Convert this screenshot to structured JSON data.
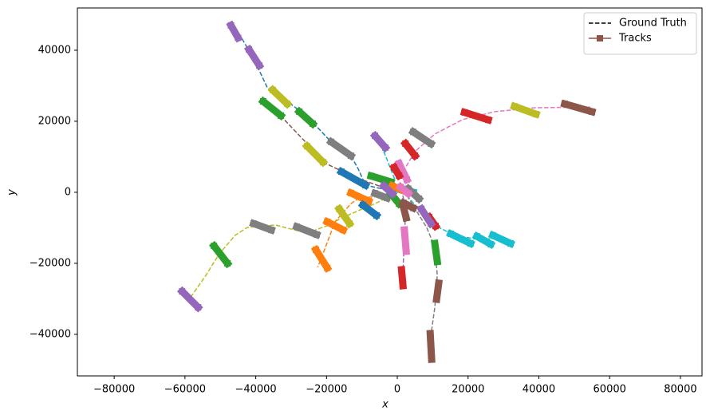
{
  "chart_data": {
    "type": "line",
    "xlabel": "x",
    "ylabel": "y",
    "xlim": [
      -90400,
      86100
    ],
    "ylim": [
      -51700,
      51900
    ],
    "xticks": [
      {
        "value": -80000,
        "label": "−80000"
      },
      {
        "value": -60000,
        "label": "−60000"
      },
      {
        "value": -40000,
        "label": "−40000"
      },
      {
        "value": -20000,
        "label": "−20000"
      },
      0,
      20000,
      40000,
      60000,
      80000
    ],
    "yticks": [
      {
        "value": -40000,
        "label": "−40000"
      },
      {
        "value": -20000,
        "label": "−20000"
      },
      0,
      20000,
      40000
    ],
    "legend": {
      "loc": "upper right",
      "entries": [
        {
          "name": "Ground Truth",
          "color": "#000000",
          "style": "dashed"
        },
        {
          "name": "Tracks",
          "color": "#8c564b",
          "style": "track"
        }
      ]
    },
    "series": [
      {
        "style": "dashed",
        "color": "#1f77b4",
        "x": [
          -45700,
          -40600,
          -36700,
          -33400,
          -25900,
          -18700,
          -13100,
          -11000,
          -9000,
          -700
        ],
        "y": [
          46300,
          37700,
          29400,
          27200,
          21800,
          14200,
          10300,
          6500,
          2000,
          200
        ]
      },
      {
        "style": "dashed",
        "color": "#8c564b",
        "x": [
          -37200,
          -33400,
          -25500,
          -21000,
          -13100,
          -4100
        ],
        "y": [
          24900,
          22000,
          13700,
          8500,
          4700,
          1400
        ]
      },
      {
        "style": "dashed",
        "color": "#e377c2",
        "x": [
          1600,
          5000,
          10600,
          18500,
          27500,
          38800,
          54500
        ],
        "y": [
          5800,
          11500,
          16400,
          20500,
          22700,
          23800,
          24000
        ]
      },
      {
        "style": "dashed",
        "color": "#17becf",
        "x": [
          -5200,
          -2900,
          -700
        ],
        "y": [
          14800,
          9200,
          3600
        ]
      },
      {
        "style": "dashed",
        "color": "#17becf",
        "x": [
          2700,
          9500,
          16200,
          23000,
          30200
        ],
        "y": [
          -900,
          -8800,
          -12100,
          -13300,
          -12800
        ]
      },
      {
        "style": "dashed",
        "color": "#7f7f7f",
        "x": [
          2700,
          8300,
          10600,
          11300,
          10600,
          9500,
          9500
        ],
        "y": [
          -900,
          -9900,
          -15500,
          -23400,
          -32400,
          -40200,
          -47000
        ]
      },
      {
        "style": "dashed",
        "color": "#9467bd",
        "x": [
          1600,
          2300,
          2000,
          1600,
          1400
        ],
        "y": [
          -900,
          -6300,
          -13000,
          -22000,
          -25500
        ]
      },
      {
        "style": "dashed",
        "color": "#bcbd22",
        "x": [
          -1800,
          -6300,
          -15300,
          -19800,
          -25500,
          -34500,
          -42400,
          -45800,
          -50300,
          -54100,
          -59300
        ],
        "y": [
          -900,
          -3200,
          -7000,
          -9400,
          -11500,
          -9200,
          -9900,
          -12100,
          -17300,
          -23400,
          -30800
        ]
      },
      {
        "style": "dashed",
        "color": "#ff7f0e",
        "x": [
          -1800,
          -10800,
          -13100,
          -17600,
          -21000,
          -22500
        ],
        "y": [
          -900,
          -1600,
          -3200,
          -8300,
          -17300,
          -21100
        ]
      },
      {
        "style": "track",
        "color": "#9467bd",
        "x": [
          -47000,
          -45000
        ],
        "y": [
          47000,
          43500
        ]
      },
      {
        "style": "track",
        "color": "#9467bd",
        "x": [
          -41900,
          -39000
        ],
        "y": [
          40200,
          35700
        ]
      },
      {
        "style": "track",
        "color": "#bcbd22",
        "x": [
          -35200,
          -31100
        ],
        "y": [
          28800,
          24900
        ]
      },
      {
        "style": "track",
        "color": "#2ca02c",
        "x": [
          -27700,
          -23900
        ],
        "y": [
          22700,
          19300
        ]
      },
      {
        "style": "track",
        "color": "#7f7f7f",
        "x": [
          -18700,
          -13100
        ],
        "y": [
          14200,
          10300
        ]
      },
      {
        "style": "track",
        "color": "#1f77b4",
        "x": [
          -15800,
          -9000
        ],
        "y": [
          5800,
          2000
        ]
      },
      {
        "style": "track",
        "color": "#2ca02c",
        "x": [
          -37900,
          -32900
        ],
        "y": [
          25600,
          21600
        ]
      },
      {
        "style": "track",
        "color": "#bcbd22",
        "x": [
          -25500,
          -21000
        ],
        "y": [
          13000,
          8500
        ]
      },
      {
        "style": "track",
        "color": "#d62728",
        "x": [
          2300,
          5000
        ],
        "y": [
          13700,
          10300
        ]
      },
      {
        "style": "track",
        "color": "#7f7f7f",
        "x": [
          4500,
          9500
        ],
        "y": [
          17000,
          13700
        ]
      },
      {
        "style": "track",
        "color": "#d62728",
        "x": [
          19000,
          25700
        ],
        "y": [
          22500,
          20400
        ]
      },
      {
        "style": "track",
        "color": "#bcbd22",
        "x": [
          33100,
          39200
        ],
        "y": [
          24200,
          22000
        ]
      },
      {
        "style": "track",
        "color": "#8c564b",
        "x": [
          47300,
          55000
        ],
        "y": [
          24900,
          22700
        ]
      },
      {
        "style": "track",
        "color": "#9467bd",
        "x": [
          -6300,
          -3400
        ],
        "y": [
          15900,
          12600
        ]
      },
      {
        "style": "track",
        "color": "#e377c2",
        "x": [
          500,
          2700
        ],
        "y": [
          8100,
          3600
        ]
      },
      {
        "style": "track",
        "color": "#d62728",
        "x": [
          -900,
          500
        ],
        "y": [
          7000,
          4700
        ]
      },
      {
        "style": "track",
        "color": "#17becf",
        "x": [
          15100,
          20700
        ],
        "y": [
          -11700,
          -14400
        ]
      },
      {
        "style": "track",
        "color": "#17becf",
        "x": [
          22500,
          26400
        ],
        "y": [
          -12400,
          -14600
        ]
      },
      {
        "style": "track",
        "color": "#17becf",
        "x": [
          27000,
          32000
        ],
        "y": [
          -12100,
          -14400
        ]
      },
      {
        "style": "track",
        "color": "#d62728",
        "x": [
          9000,
          10800
        ],
        "y": [
          -7000,
          -9500
        ]
      },
      {
        "style": "track",
        "color": "#2ca02c",
        "x": [
          10600,
          11300
        ],
        "y": [
          -14400,
          -19500
        ]
      },
      {
        "style": "track",
        "color": "#8c564b",
        "x": [
          11700,
          11100
        ],
        "y": [
          -25600,
          -30100
        ]
      },
      {
        "style": "track",
        "color": "#8c564b",
        "x": [
          9300,
          9700
        ],
        "y": [
          -39800,
          -47000
        ]
      },
      {
        "style": "track",
        "color": "#e377c2",
        "x": [
          2000,
          2500
        ],
        "y": [
          -10600,
          -16600
        ]
      },
      {
        "style": "track",
        "color": "#d62728",
        "x": [
          1200,
          1600
        ],
        "y": [
          -21800,
          -26300
        ]
      },
      {
        "style": "track",
        "color": "#bcbd22",
        "x": [
          -16400,
          -13500
        ],
        "y": [
          -4700,
          -8800
        ]
      },
      {
        "style": "track",
        "color": "#ff7f0e",
        "x": [
          -19800,
          -15300
        ],
        "y": [
          -8300,
          -10600
        ]
      },
      {
        "style": "track",
        "color": "#7f7f7f",
        "x": [
          -28400,
          -22800
        ],
        "y": [
          -9700,
          -11900
        ]
      },
      {
        "style": "track",
        "color": "#7f7f7f",
        "x": [
          -40600,
          -35600
        ],
        "y": [
          -8800,
          -10600
        ]
      },
      {
        "style": "track",
        "color": "#2ca02c",
        "x": [
          -51800,
          -48000
        ],
        "y": [
          -15100,
          -20000
        ]
      },
      {
        "style": "track",
        "color": "#9467bd",
        "x": [
          -60800,
          -56300
        ],
        "y": [
          -27900,
          -32400
        ]
      },
      {
        "style": "track",
        "color": "#ff7f0e",
        "x": [
          -13100,
          -8100
        ],
        "y": [
          -200,
          -2500
        ]
      },
      {
        "style": "track",
        "color": "#ff7f0e",
        "x": [
          -23000,
          -19800
        ],
        "y": [
          -16200,
          -21300
        ]
      },
      {
        "style": "track",
        "color": "#1f77b4",
        "x": [
          -9700,
          -5900
        ],
        "y": [
          -3600,
          -6500
        ]
      },
      {
        "style": "track",
        "color": "#2ca02c",
        "x": [
          -7400,
          -1800
        ],
        "y": [
          4600,
          2900
        ]
      },
      {
        "style": "track",
        "color": "#9467bd",
        "x": [
          6800,
          9500
        ],
        "y": [
          -4700,
          -8800
        ]
      },
      {
        "style": "track",
        "color": "#7f7f7f",
        "x": [
          -6300,
          -2900
        ],
        "y": [
          -300,
          -1600
        ]
      },
      {
        "style": "track",
        "color": "#17becf",
        "x": [
          -1400,
          4500
        ],
        "y": [
          1200,
          0
        ]
      },
      {
        "style": "track",
        "color": "#2ca02c",
        "x": [
          -1800,
          500
        ],
        "y": [
          -400,
          -3200
        ]
      },
      {
        "style": "track",
        "color": "#ff7f0e",
        "x": [
          -1400,
          1600
        ],
        "y": [
          1800,
          500
        ]
      },
      {
        "style": "track",
        "color": "#7f7f7f",
        "x": [
          3100,
          6100
        ],
        "y": [
          1000,
          -1800
        ]
      },
      {
        "style": "track",
        "color": "#e377c2",
        "x": [
          900,
          3100
        ],
        "y": [
          1500,
          -300
        ]
      },
      {
        "style": "track",
        "color": "#8c564b",
        "x": [
          1800,
          4500
        ],
        "y": [
          -3000,
          -4400
        ]
      },
      {
        "style": "track",
        "color": "#8c564b",
        "x": [
          1600,
          2500
        ],
        "y": [
          -3600,
          -7200
        ]
      },
      {
        "style": "track",
        "color": "#9467bd",
        "x": [
          -3800,
          -1400
        ],
        "y": [
          1800,
          -400
        ]
      }
    ]
  }
}
